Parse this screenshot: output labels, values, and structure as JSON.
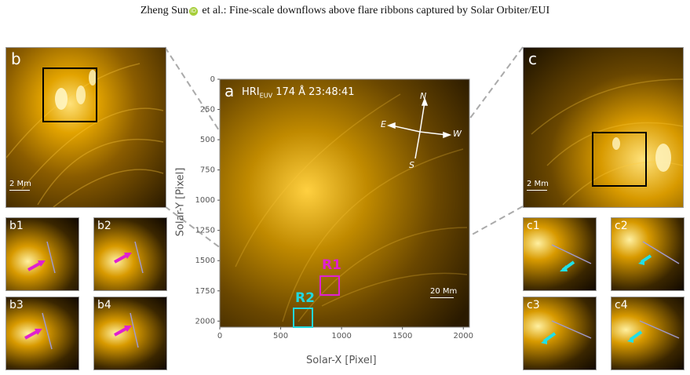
{
  "header": {
    "author": "Zheng Sun",
    "rest": " et al.: Fine-scale downflows above flare ribbons captured by Solar Orbiter/EUI"
  },
  "panels": {
    "b": {
      "label": "b",
      "scale": "2 Mm"
    },
    "c": {
      "label": "c",
      "scale": "2 Mm"
    },
    "a": {
      "label": "a",
      "instrument": "HRI",
      "instrument_sub": "EUV",
      "wavelength_time": "174 Å 23:48:41",
      "scale": "20 Mm",
      "compass": {
        "n": "N",
        "s": "S",
        "e": "E",
        "w": "W"
      },
      "regions": [
        {
          "label": "R1",
          "color": "#e020d0"
        },
        {
          "label": "R2",
          "color": "#20d8e0"
        }
      ],
      "xlabel": "Solar-X [Pixel]",
      "ylabel": "Solar-Y [Pixel]",
      "xticks": [
        "0",
        "500",
        "1000",
        "1500",
        "2000"
      ],
      "yticks": [
        "0",
        "250",
        "500",
        "750",
        "1000",
        "1250",
        "1500",
        "1750",
        "2000"
      ]
    },
    "b_sub": [
      "b1",
      "b2",
      "b3",
      "b4"
    ],
    "c_sub": [
      "c1",
      "c2",
      "c3",
      "c4"
    ]
  },
  "colors": {
    "magenta_arrow": "#e020d0",
    "cyan_arrow": "#20e0e8"
  }
}
